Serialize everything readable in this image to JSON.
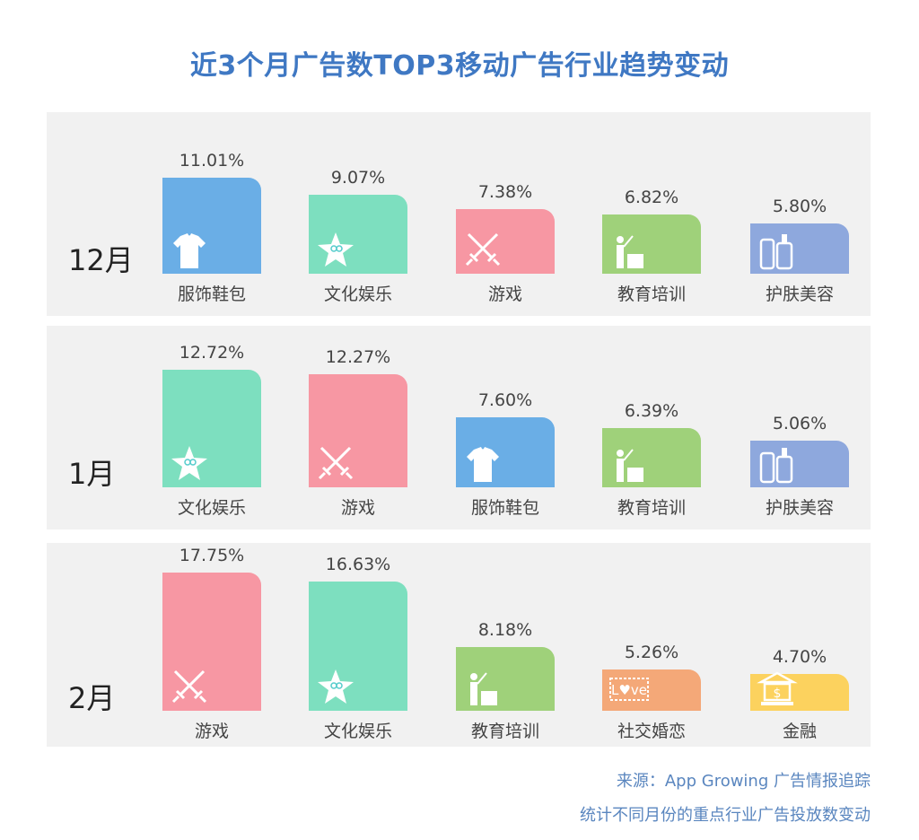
{
  "title": "近3个月广告数TOP3移动广告行业趋势变动",
  "chart_data": {
    "type": "bar",
    "title": "近3个月广告数TOP3移动广告行业趋势变动",
    "unit": "%",
    "panels": [
      {
        "month": "12月",
        "categories": [
          "服饰鞋包",
          "文化娱乐",
          "游戏",
          "教育培训",
          "护肤美容"
        ],
        "values": [
          11.01,
          9.07,
          7.38,
          6.82,
          5.8
        ],
        "labels": [
          "11.01%",
          "9.07%",
          "7.38%",
          "6.82%",
          "5.80%"
        ]
      },
      {
        "month": "1月",
        "categories": [
          "文化娱乐",
          "游戏",
          "服饰鞋包",
          "教育培训",
          "护肤美容"
        ],
        "values": [
          12.72,
          12.27,
          7.6,
          6.39,
          5.06
        ],
        "labels": [
          "12.72%",
          "12.27%",
          "7.60%",
          "6.39%",
          "5.06%"
        ]
      },
      {
        "month": "2月",
        "categories": [
          "游戏",
          "文化娱乐",
          "教育培训",
          "社交婚恋",
          "金融"
        ],
        "values": [
          17.75,
          16.63,
          8.18,
          5.26,
          4.7
        ],
        "labels": [
          "17.75%",
          "16.63%",
          "8.18%",
          "5.26%",
          "4.70%"
        ]
      }
    ],
    "category_colors": {
      "服饰鞋包": "#6aaee6",
      "文化娱乐": "#7ddfbf",
      "游戏": "#f797a3",
      "教育培训": "#9fd17a",
      "护肤美容": "#8ea8dd",
      "社交婚恋": "#f4a878",
      "金融": "#fcd25e"
    },
    "category_icons": {
      "服饰鞋包": "shirt-icon",
      "文化娱乐": "star-icon",
      "游戏": "crossed-swords-icon",
      "教育培训": "teacher-icon",
      "护肤美容": "cosmetics-icon",
      "社交婚恋": "love-stamp-icon",
      "金融": "bank-icon"
    }
  },
  "footer": {
    "source": "来源：App Growing 广告情报追踪",
    "note": "统计不同月份的重点行业广告投放数变动"
  }
}
